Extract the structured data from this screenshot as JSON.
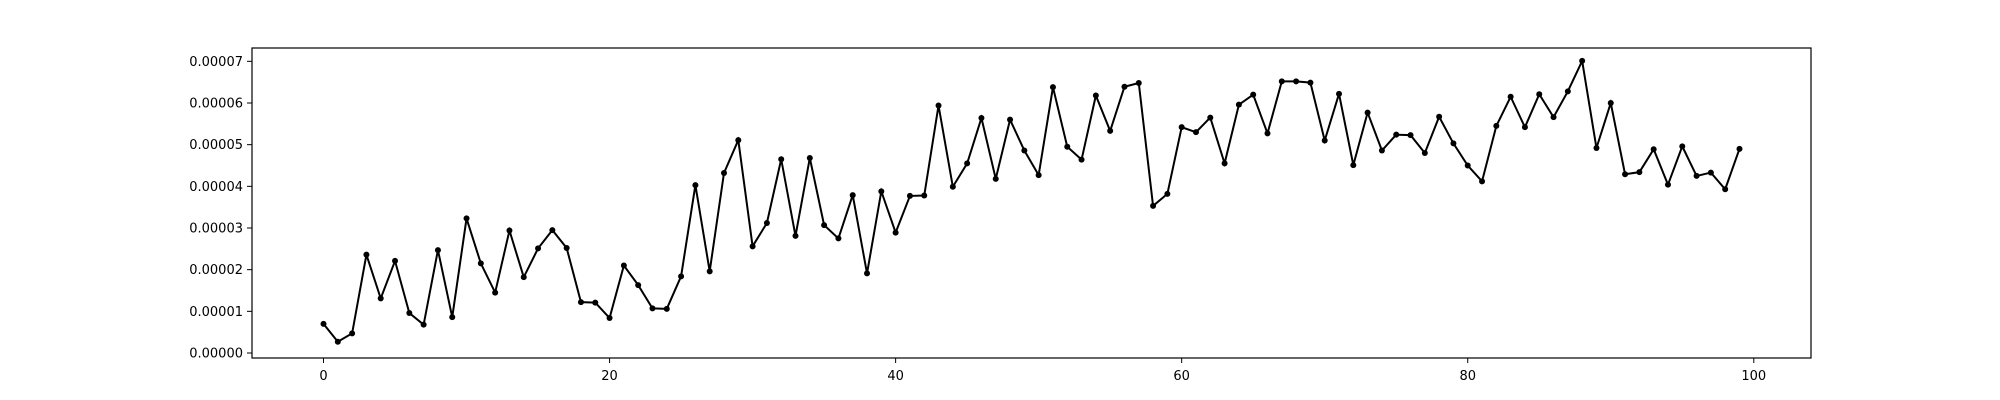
{
  "chart_data": {
    "type": "line",
    "title": "",
    "xlabel": "",
    "ylabel": "",
    "xlim": [
      -5,
      104
    ],
    "ylim": [
      -1.2e-06,
      7.32e-05
    ],
    "grid": false,
    "legend": "none",
    "colors": {
      "line": "#000000",
      "marker": "#000000",
      "axes": "#000000",
      "background": "#ffffff"
    },
    "xticks": [
      0,
      20,
      40,
      60,
      80,
      100
    ],
    "xtick_labels": [
      "0",
      "20",
      "40",
      "60",
      "80",
      "100"
    ],
    "yticks": [
      0,
      1e-05,
      2e-05,
      3e-05,
      4e-05,
      5e-05,
      6e-05,
      7e-05
    ],
    "ytick_labels": [
      "0.00000",
      "0.00001",
      "0.00002",
      "0.00003",
      "0.00004",
      "0.00005",
      "0.00006",
      "0.00007"
    ],
    "series": [
      {
        "marker": "dot",
        "x": [
          0,
          1,
          2,
          3,
          4,
          5,
          6,
          7,
          8,
          9,
          10,
          11,
          12,
          13,
          14,
          15,
          16,
          17,
          18,
          19,
          20,
          21,
          22,
          23,
          24,
          25,
          26,
          27,
          28,
          29,
          30,
          31,
          32,
          33,
          34,
          35,
          36,
          37,
          38,
          39,
          40,
          41,
          42,
          43,
          44,
          45,
          46,
          47,
          48,
          49,
          50,
          51,
          52,
          53,
          54,
          55,
          56,
          57,
          58,
          59,
          60,
          61,
          62,
          63,
          64,
          65,
          66,
          67,
          68,
          69,
          70,
          71,
          72,
          73,
          74,
          75,
          76,
          77,
          78,
          79,
          80,
          81,
          82,
          83,
          84,
          85,
          86,
          87,
          88,
          89,
          90,
          91,
          92,
          93,
          94,
          95,
          96,
          97,
          98,
          99
        ],
        "y": [
          7e-06,
          2.7e-06,
          4.7e-06,
          2.36e-05,
          1.31e-05,
          2.21e-05,
          9.6e-06,
          6.8e-06,
          2.47e-05,
          8.6e-06,
          3.23e-05,
          2.15e-05,
          1.45e-05,
          2.94e-05,
          1.82e-05,
          2.51e-05,
          2.95e-05,
          2.52e-05,
          1.22e-05,
          1.21e-05,
          8.4e-06,
          2.1e-05,
          1.63e-05,
          1.07e-05,
          1.06e-05,
          1.84e-05,
          4.03e-05,
          1.96e-05,
          4.32e-05,
          5.11e-05,
          2.56e-05,
          3.12e-05,
          4.65e-05,
          2.81e-05,
          4.68e-05,
          3.07e-05,
          2.75e-05,
          3.79e-05,
          1.91e-05,
          3.88e-05,
          2.89e-05,
          3.77e-05,
          3.78e-05,
          5.94e-05,
          3.99e-05,
          4.55e-05,
          5.64e-05,
          4.18e-05,
          5.6e-05,
          4.86e-05,
          4.27e-05,
          6.38e-05,
          4.95e-05,
          4.64e-05,
          6.18e-05,
          5.33e-05,
          6.39e-05,
          6.48e-05,
          3.53e-05,
          3.82e-05,
          5.42e-05,
          5.3e-05,
          5.65e-05,
          4.55e-05,
          5.96e-05,
          6.2e-05,
          5.27e-05,
          6.52e-05,
          6.52e-05,
          6.49e-05,
          5.1e-05,
          6.22e-05,
          4.51e-05,
          5.77e-05,
          4.86e-05,
          5.24e-05,
          5.23e-05,
          4.8e-05,
          5.67e-05,
          5.03e-05,
          4.5e-05,
          4.12e-05,
          5.45e-05,
          6.15e-05,
          5.42e-05,
          6.21e-05,
          5.66e-05,
          6.28e-05,
          7.01e-05,
          4.92e-05,
          6e-05,
          4.29e-05,
          4.34e-05,
          4.89e-05,
          4.04e-05,
          4.96e-05,
          4.25e-05,
          4.33e-05,
          3.93e-05,
          4.9e-05
        ]
      }
    ]
  }
}
